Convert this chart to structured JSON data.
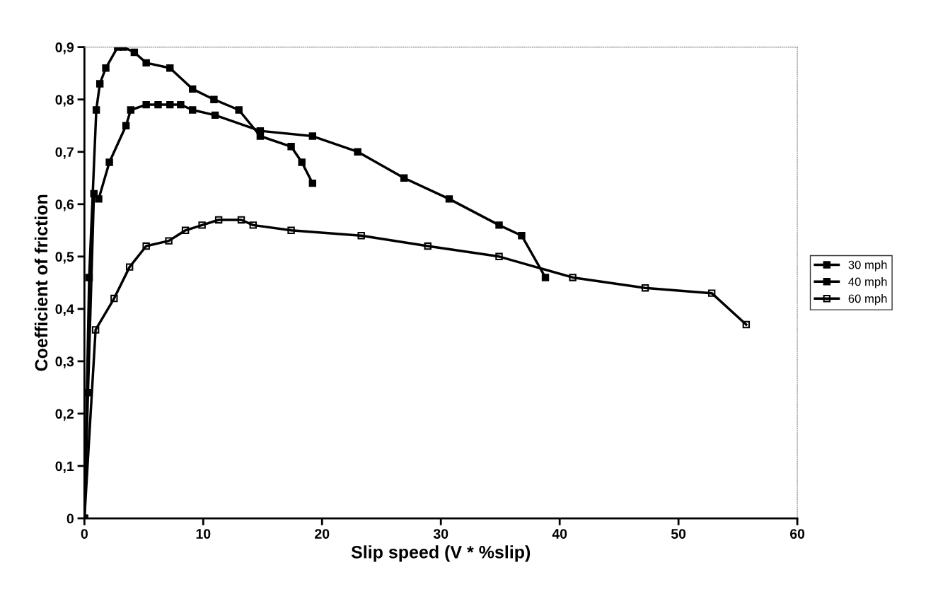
{
  "chart_data": {
    "type": "line",
    "xlabel": "Slip speed (V * %slip)",
    "ylabel": "Coefficient of friction",
    "xlim": [
      0,
      60
    ],
    "ylim": [
      0,
      0.9
    ],
    "xticks": [
      0,
      10,
      20,
      30,
      40,
      50,
      60
    ],
    "yticks": [
      0,
      {
        "value": 0.1,
        "label": "0,1"
      },
      {
        "value": 0.2,
        "label": "0,2"
      },
      {
        "value": 0.3,
        "label": "0,3"
      },
      {
        "value": 0.4,
        "label": "0,4"
      },
      {
        "value": 0.5,
        "label": "0,5"
      },
      {
        "value": 0.6,
        "label": "0,6"
      },
      {
        "value": 0.7,
        "label": "0,7"
      },
      {
        "value": 0.8,
        "label": "0,8"
      },
      {
        "value": 0.9,
        "label": "0,9"
      }
    ],
    "grid": false,
    "legend": "right",
    "marker": "square",
    "line_style": "solid",
    "series": [
      {
        "name": "30 mph",
        "color": "#000000",
        "x": [
          0,
          0.4,
          1.0,
          1.3,
          1.8,
          2.8,
          3.3,
          4.2,
          5.2,
          7.2,
          9.1,
          10.9,
          13.0,
          14.8,
          17.4,
          18.3,
          19.2
        ],
        "values": [
          0,
          0.46,
          0.78,
          0.83,
          0.86,
          0.9,
          0.9,
          0.89,
          0.87,
          0.86,
          0.82,
          0.8,
          0.78,
          0.73,
          0.71,
          0.68,
          0.64
        ]
      },
      {
        "name": "40 mph",
        "color": "#000000",
        "x": [
          0,
          0.3,
          0.8,
          1.2,
          2.1,
          3.5,
          3.9,
          5.2,
          6.2,
          7.2,
          8.1,
          9.1,
          11.0,
          14.8,
          19.2,
          23.0,
          26.9,
          30.7,
          34.9,
          36.8,
          38.8
        ],
        "values": [
          0,
          0.24,
          0.62,
          0.61,
          0.68,
          0.75,
          0.78,
          0.79,
          0.79,
          0.79,
          0.79,
          0.78,
          0.77,
          0.74,
          0.73,
          0.7,
          0.65,
          0.61,
          0.56,
          0.54,
          0.46
        ]
      },
      {
        "name": "60 mph",
        "color": "#000000",
        "x": [
          0,
          0.94,
          2.5,
          3.8,
          5.2,
          7.1,
          8.5,
          9.9,
          11.3,
          13.2,
          14.2,
          17.4,
          23.3,
          28.9,
          34.9,
          41.1,
          47.2,
          52.8,
          55.7
        ],
        "values": [
          0,
          0.36,
          0.42,
          0.48,
          0.52,
          0.53,
          0.55,
          0.56,
          0.57,
          0.57,
          0.56,
          0.55,
          0.54,
          0.52,
          0.5,
          0.46,
          0.44,
          0.43,
          0.37
        ]
      }
    ]
  }
}
